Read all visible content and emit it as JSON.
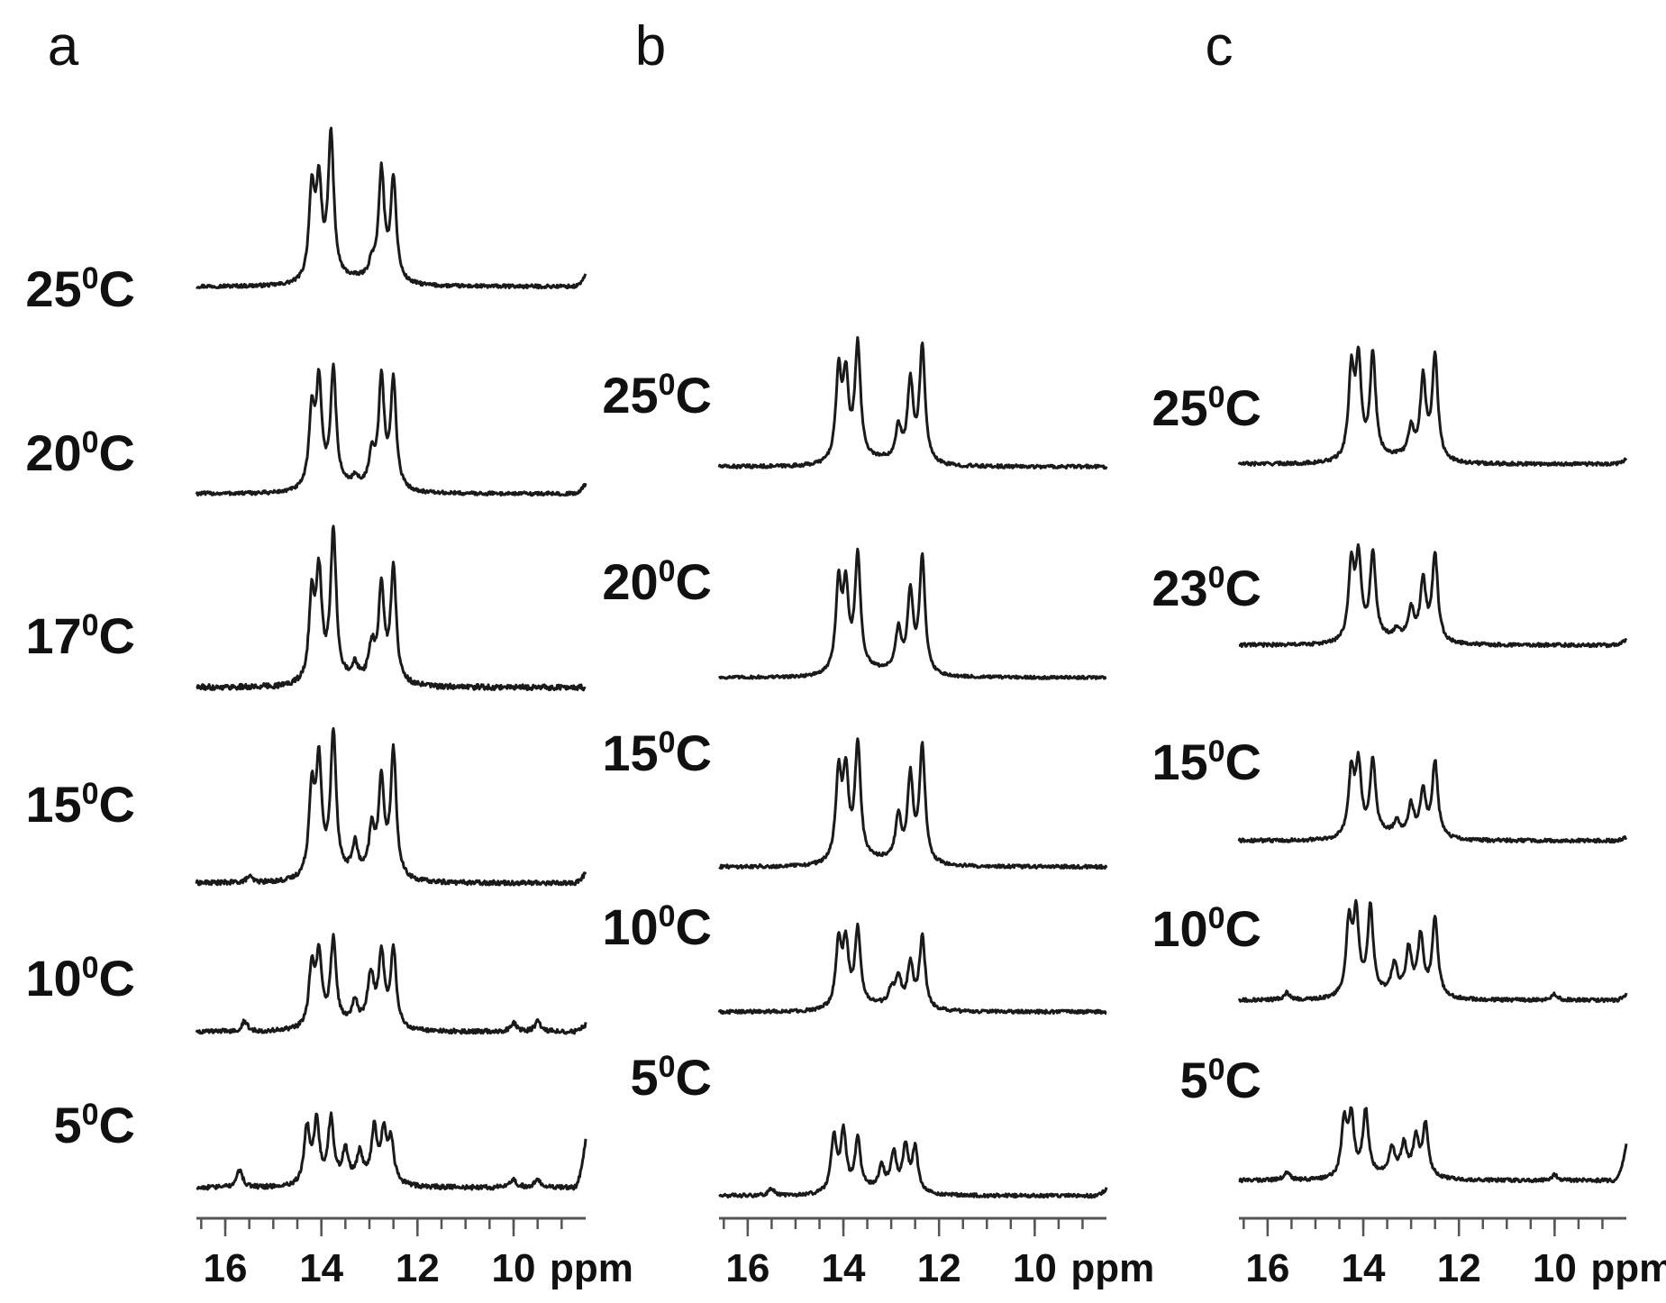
{
  "chart_data": [
    {
      "type": "line",
      "panel": "a",
      "x_unit": "ppm",
      "xlim": [
        16.6,
        8.5
      ],
      "x_ticks": [
        16,
        14,
        12,
        10
      ],
      "x_tick_labels": [
        "16",
        "14",
        "12",
        "10"
      ],
      "series": [
        {
          "name": "25",
          "unit": "C",
          "peaks": [
            [
              14.2,
              0.6
            ],
            [
              14.05,
              0.62
            ],
            [
              13.8,
              0.97
            ],
            [
              12.95,
              0.1
            ],
            [
              12.75,
              0.73
            ],
            [
              12.5,
              0.69
            ]
          ],
          "noise": 0.012,
          "edge": 0.08
        },
        {
          "name": "20",
          "unit": "C",
          "peaks": [
            [
              14.2,
              0.5
            ],
            [
              14.05,
              0.69
            ],
            [
              13.75,
              0.78
            ],
            [
              13.3,
              0.05
            ],
            [
              12.95,
              0.2
            ],
            [
              12.75,
              0.72
            ],
            [
              12.5,
              0.72
            ]
          ],
          "noise": 0.012,
          "edge": 0.07
        },
        {
          "name": "17",
          "unit": "C",
          "peaks": [
            [
              14.2,
              0.55
            ],
            [
              14.05,
              0.7
            ],
            [
              13.75,
              1.0
            ],
            [
              13.3,
              0.1
            ],
            [
              12.95,
              0.22
            ],
            [
              12.75,
              0.62
            ],
            [
              12.5,
              0.76
            ]
          ],
          "noise": 0.018,
          "edge": 0.0
        },
        {
          "name": "15",
          "unit": "C",
          "peaks": [
            [
              15.5,
              0.04
            ],
            [
              14.2,
              0.58
            ],
            [
              14.05,
              0.74
            ],
            [
              13.75,
              0.96
            ],
            [
              13.3,
              0.2
            ],
            [
              12.95,
              0.3
            ],
            [
              12.75,
              0.63
            ],
            [
              12.5,
              0.85
            ]
          ],
          "noise": 0.015,
          "edge": 0.07
        },
        {
          "name": "10",
          "unit": "C",
          "peaks": [
            [
              15.6,
              0.07
            ],
            [
              14.2,
              0.4
            ],
            [
              14.05,
              0.46
            ],
            [
              13.75,
              0.58
            ],
            [
              13.3,
              0.15
            ],
            [
              13.0,
              0.15
            ],
            [
              12.95,
              0.2
            ],
            [
              12.75,
              0.48
            ],
            [
              12.5,
              0.52
            ],
            [
              10.0,
              0.06
            ],
            [
              9.5,
              0.07
            ]
          ],
          "noise": 0.015,
          "edge": 0.05
        },
        {
          "name": "5",
          "unit": "C",
          "peaks": [
            [
              15.7,
              0.12
            ],
            [
              14.3,
              0.38
            ],
            [
              14.1,
              0.4
            ],
            [
              13.8,
              0.42
            ],
            [
              13.5,
              0.2
            ],
            [
              13.2,
              0.18
            ],
            [
              12.9,
              0.35
            ],
            [
              12.7,
              0.32
            ],
            [
              12.55,
              0.28
            ],
            [
              10.0,
              0.06
            ],
            [
              9.5,
              0.06
            ]
          ],
          "noise": 0.015,
          "edge": 0.32
        }
      ]
    },
    {
      "type": "line",
      "panel": "b",
      "x_unit": "ppm",
      "xlim": [
        16.6,
        8.5
      ],
      "x_ticks": [
        16,
        14,
        12,
        10
      ],
      "x_tick_labels": [
        "16",
        "14",
        "12",
        "10"
      ],
      "series": [
        {
          "name": "25",
          "unit": "C",
          "peaks": [
            [
              14.1,
              0.6
            ],
            [
              13.95,
              0.55
            ],
            [
              13.7,
              0.8
            ],
            [
              12.85,
              0.23
            ],
            [
              12.6,
              0.55
            ],
            [
              12.35,
              0.8
            ]
          ],
          "noise": 0.012,
          "edge": 0.0
        },
        {
          "name": "20",
          "unit": "C",
          "peaks": [
            [
              14.1,
              0.6
            ],
            [
              13.95,
              0.55
            ],
            [
              13.7,
              0.8
            ],
            [
              12.85,
              0.28
            ],
            [
              12.6,
              0.55
            ],
            [
              12.35,
              0.8
            ]
          ],
          "noise": 0.01,
          "edge": 0.0
        },
        {
          "name": "15",
          "unit": "C",
          "peaks": [
            [
              14.1,
              0.6
            ],
            [
              13.95,
              0.58
            ],
            [
              13.7,
              0.8
            ],
            [
              12.85,
              0.3
            ],
            [
              12.6,
              0.58
            ],
            [
              12.35,
              0.8
            ]
          ],
          "noise": 0.012,
          "edge": 0.0
        },
        {
          "name": "10",
          "unit": "C",
          "peaks": [
            [
              14.1,
              0.45
            ],
            [
              13.95,
              0.42
            ],
            [
              13.7,
              0.52
            ],
            [
              13.0,
              0.1
            ],
            [
              12.85,
              0.2
            ],
            [
              12.6,
              0.3
            ],
            [
              12.35,
              0.5
            ]
          ],
          "noise": 0.012,
          "edge": 0.0
        },
        {
          "name": "5",
          "unit": "C",
          "peaks": [
            [
              15.5,
              0.05
            ],
            [
              14.2,
              0.38
            ],
            [
              14.0,
              0.4
            ],
            [
              13.7,
              0.35
            ],
            [
              13.2,
              0.15
            ],
            [
              12.95,
              0.25
            ],
            [
              12.7,
              0.3
            ],
            [
              12.5,
              0.3
            ]
          ],
          "noise": 0.012,
          "edge": 0.05
        }
      ]
    },
    {
      "type": "line",
      "panel": "c",
      "x_unit": "ppm",
      "xlim": [
        16.6,
        8.5
      ],
      "x_ticks": [
        16,
        14,
        12,
        10
      ],
      "x_tick_labels": [
        "16",
        "14",
        "12",
        "10"
      ],
      "series": [
        {
          "name": "25",
          "unit": "C",
          "peaks": [
            [
              14.25,
              0.6
            ],
            [
              14.1,
              0.65
            ],
            [
              13.8,
              0.72
            ],
            [
              13.0,
              0.2
            ],
            [
              12.75,
              0.55
            ],
            [
              12.5,
              0.72
            ]
          ],
          "noise": 0.012,
          "edge": 0.04
        },
        {
          "name": "23",
          "unit": "C",
          "peaks": [
            [
              14.25,
              0.52
            ],
            [
              14.1,
              0.55
            ],
            [
              13.8,
              0.6
            ],
            [
              13.3,
              0.06
            ],
            [
              13.0,
              0.2
            ],
            [
              12.75,
              0.4
            ],
            [
              12.5,
              0.6
            ]
          ],
          "noise": 0.012,
          "edge": 0.04
        },
        {
          "name": "15",
          "unit": "C",
          "peaks": [
            [
              14.25,
              0.45
            ],
            [
              14.1,
              0.48
            ],
            [
              13.8,
              0.52
            ],
            [
              13.3,
              0.08
            ],
            [
              13.0,
              0.2
            ],
            [
              12.75,
              0.3
            ],
            [
              12.5,
              0.52
            ]
          ],
          "noise": 0.012,
          "edge": 0.03
        },
        {
          "name": "10",
          "unit": "C",
          "peaks": [
            [
              15.6,
              0.05
            ],
            [
              14.3,
              0.5
            ],
            [
              14.15,
              0.55
            ],
            [
              13.85,
              0.6
            ],
            [
              13.35,
              0.2
            ],
            [
              13.05,
              0.3
            ],
            [
              12.8,
              0.4
            ],
            [
              12.5,
              0.55
            ],
            [
              10.0,
              0.04
            ]
          ],
          "noise": 0.012,
          "edge": 0.04
        },
        {
          "name": "5",
          "unit": "C",
          "peaks": [
            [
              15.6,
              0.06
            ],
            [
              14.4,
              0.38
            ],
            [
              14.25,
              0.4
            ],
            [
              13.95,
              0.45
            ],
            [
              13.4,
              0.18
            ],
            [
              13.15,
              0.2
            ],
            [
              12.9,
              0.25
            ],
            [
              12.7,
              0.35
            ],
            [
              10.0,
              0.04
            ]
          ],
          "noise": 0.012,
          "edge": 0.25
        }
      ]
    }
  ]
}
